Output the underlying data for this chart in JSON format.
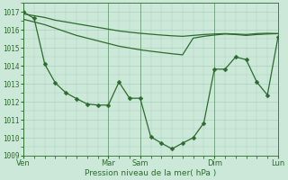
{
  "background_color": "#cce8d8",
  "grid_color": "#aad0c0",
  "line_color": "#2d6b2d",
  "xlabel": "Pression niveau de la mer( hPa )",
  "ylim": [
    1009,
    1017.5
  ],
  "yticks": [
    1009,
    1010,
    1011,
    1012,
    1013,
    1014,
    1015,
    1016,
    1017
  ],
  "xtick_labels": [
    "Ven",
    "Mar",
    "Sam",
    "Dim",
    "Lun"
  ],
  "xtick_positions": [
    0,
    8,
    11,
    18,
    24
  ],
  "line1_x": [
    0,
    1,
    2,
    3,
    4,
    5,
    6,
    7,
    8,
    9,
    10,
    11,
    12,
    13,
    14,
    15,
    16,
    17,
    18,
    19,
    20,
    21,
    22,
    23,
    24
  ],
  "line1_y": [
    1016.9,
    1016.8,
    1016.7,
    1016.55,
    1016.45,
    1016.35,
    1016.25,
    1016.15,
    1016.05,
    1015.95,
    1015.88,
    1015.82,
    1015.77,
    1015.72,
    1015.68,
    1015.65,
    1015.7,
    1015.75,
    1015.78,
    1015.8,
    1015.78,
    1015.75,
    1015.8,
    1015.82,
    1015.8
  ],
  "line2_x": [
    0,
    1,
    2,
    3,
    4,
    5,
    6,
    7,
    8,
    9,
    10,
    11,
    12,
    13,
    14,
    15,
    16,
    17,
    18,
    19,
    20,
    21,
    22,
    23,
    24
  ],
  "line2_y": [
    1016.6,
    1016.45,
    1016.3,
    1016.1,
    1015.9,
    1015.7,
    1015.55,
    1015.4,
    1015.25,
    1015.1,
    1015.0,
    1014.9,
    1014.82,
    1014.75,
    1014.68,
    1014.62,
    1015.55,
    1015.65,
    1015.72,
    1015.78,
    1015.75,
    1015.7,
    1015.75,
    1015.78,
    1015.8
  ],
  "line3_x": [
    0,
    1,
    2,
    3,
    4,
    5,
    6,
    7,
    8,
    9,
    10,
    11,
    12,
    13,
    14,
    15,
    16,
    17,
    18,
    19,
    20,
    21,
    22,
    23,
    24
  ],
  "line3_y": [
    1017.0,
    1016.65,
    1014.1,
    1013.05,
    1012.5,
    1012.18,
    1011.88,
    1011.82,
    1011.82,
    1013.1,
    1012.2,
    1012.2,
    1010.05,
    1009.7,
    1009.38,
    1009.7,
    1010.0,
    1010.82,
    1013.82,
    1013.82,
    1014.5,
    1014.35,
    1013.1,
    1012.38,
    1015.6
  ],
  "vline_positions": [
    0,
    8,
    11,
    18,
    24
  ],
  "xlim": [
    0,
    24
  ],
  "figsize": [
    3.2,
    2.0
  ],
  "dpi": 100,
  "ytick_fontsize": 5.5,
  "xtick_fontsize": 6.0,
  "xlabel_fontsize": 6.5
}
